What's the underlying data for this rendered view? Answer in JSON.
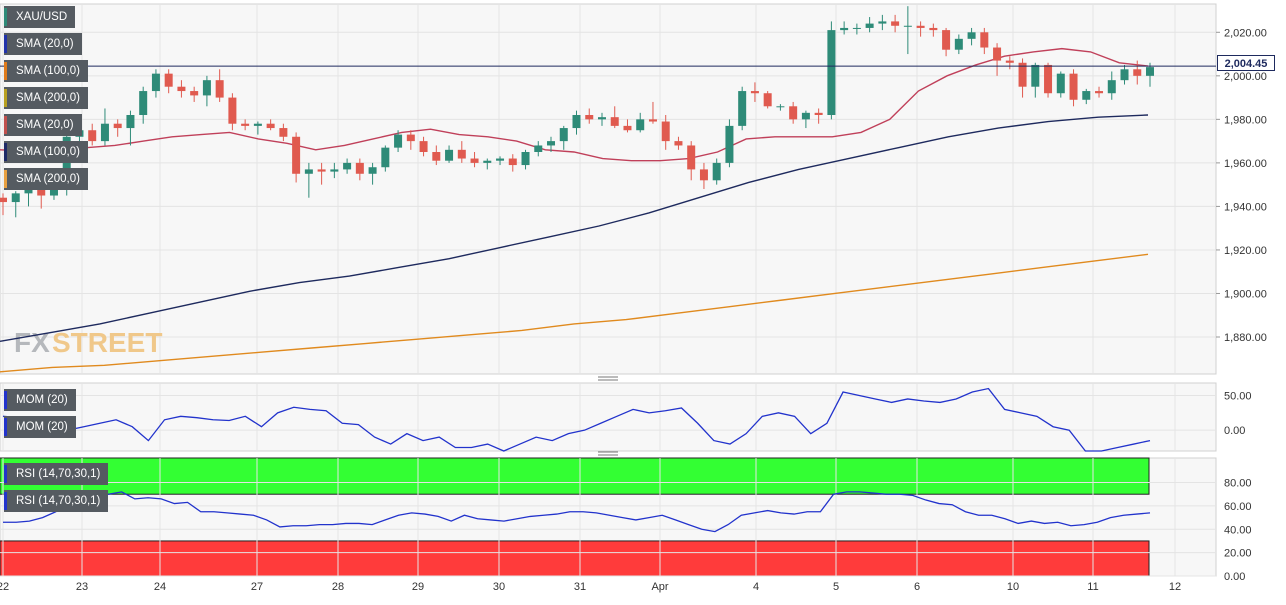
{
  "chart_data": {
    "type": "candlestick",
    "symbol": "XAU/USD",
    "watermark": "FXSTREET",
    "current_price": "2,004.45",
    "x_ticks": [
      "22",
      "23",
      "24",
      "27",
      "28",
      "29",
      "30",
      "31",
      "Apr",
      "4",
      "5",
      "6",
      "10",
      "11",
      "12"
    ],
    "y_ticks": [
      "2,020.00",
      "2,000.00",
      "1,980.00",
      "1,960.00",
      "1,940.00",
      "1,920.00",
      "1,900.00",
      "1,880.00"
    ],
    "ylim": [
      1863,
      2033
    ],
    "legend": [
      {
        "label": "XAU/USD",
        "color": "#2e8b78"
      },
      {
        "label": "SMA (20,0)",
        "color": "#2233aa"
      },
      {
        "label": "SMA (100,0)",
        "color": "#e07b1a"
      },
      {
        "label": "SMA (200,0)",
        "color": "#b8a020"
      },
      {
        "label": "SMA (20,0)",
        "color": "#c0504d"
      },
      {
        "label": "SMA (100,0)",
        "color": "#1e2a66"
      },
      {
        "label": "SMA (200,0)",
        "color": "#e8a040"
      }
    ],
    "colors": {
      "up": "#2e8b78",
      "down": "#e05a4f",
      "sma20": "#c0405a",
      "sma100": "#1e2a5e",
      "sma200": "#e08a1e",
      "price_line": "#1e2a5e"
    },
    "candles": [
      {
        "o": 1944,
        "h": 1946,
        "l": 1936,
        "c": 1942
      },
      {
        "o": 1942,
        "h": 1947,
        "l": 1935,
        "c": 1946
      },
      {
        "o": 1946,
        "h": 1952,
        "l": 1940,
        "c": 1949
      },
      {
        "o": 1949,
        "h": 1950,
        "l": 1939,
        "c": 1945
      },
      {
        "o": 1945,
        "h": 1955,
        "l": 1943,
        "c": 1953
      },
      {
        "o": 1953,
        "h": 1975,
        "l": 1945,
        "c": 1972
      },
      {
        "o": 1972,
        "h": 1978,
        "l": 1965,
        "c": 1975
      },
      {
        "o": 1975,
        "h": 1978,
        "l": 1968,
        "c": 1970
      },
      {
        "o": 1970,
        "h": 1985,
        "l": 1968,
        "c": 1978
      },
      {
        "o": 1978,
        "h": 1980,
        "l": 1972,
        "c": 1976
      },
      {
        "o": 1976,
        "h": 1984,
        "l": 1968,
        "c": 1982
      },
      {
        "o": 1982,
        "h": 1995,
        "l": 1978,
        "c": 1993
      },
      {
        "o": 1993,
        "h": 2003,
        "l": 1990,
        "c": 2001
      },
      {
        "o": 2001,
        "h": 2003,
        "l": 1992,
        "c": 1995
      },
      {
        "o": 1995,
        "h": 1998,
        "l": 1990,
        "c": 1993
      },
      {
        "o": 1993,
        "h": 1995,
        "l": 1988,
        "c": 1991
      },
      {
        "o": 1991,
        "h": 2000,
        "l": 1986,
        "c": 1998
      },
      {
        "o": 1998,
        "h": 2003,
        "l": 1988,
        "c": 1990
      },
      {
        "o": 1990,
        "h": 1992,
        "l": 1975,
        "c": 1978
      },
      {
        "o": 1978,
        "h": 1980,
        "l": 1975,
        "c": 1977
      },
      {
        "o": 1977,
        "h": 1979,
        "l": 1973,
        "c": 1978
      },
      {
        "o": 1978,
        "h": 1980,
        "l": 1975,
        "c": 1976
      },
      {
        "o": 1976,
        "h": 1978,
        "l": 1970,
        "c": 1972
      },
      {
        "o": 1972,
        "h": 1974,
        "l": 1951,
        "c": 1955
      },
      {
        "o": 1955,
        "h": 1960,
        "l": 1944,
        "c": 1957
      },
      {
        "o": 1957,
        "h": 1960,
        "l": 1950,
        "c": 1956
      },
      {
        "o": 1956,
        "h": 1960,
        "l": 1953,
        "c": 1957
      },
      {
        "o": 1957,
        "h": 1962,
        "l": 1955,
        "c": 1960
      },
      {
        "o": 1960,
        "h": 1962,
        "l": 1952,
        "c": 1955
      },
      {
        "o": 1955,
        "h": 1960,
        "l": 1950,
        "c": 1958
      },
      {
        "o": 1958,
        "h": 1968,
        "l": 1956,
        "c": 1967
      },
      {
        "o": 1967,
        "h": 1975,
        "l": 1965,
        "c": 1973
      },
      {
        "o": 1973,
        "h": 1975,
        "l": 1966,
        "c": 1970
      },
      {
        "o": 1970,
        "h": 1972,
        "l": 1963,
        "c": 1965
      },
      {
        "o": 1965,
        "h": 1968,
        "l": 1959,
        "c": 1961
      },
      {
        "o": 1961,
        "h": 1968,
        "l": 1960,
        "c": 1966
      },
      {
        "o": 1966,
        "h": 1970,
        "l": 1960,
        "c": 1962
      },
      {
        "o": 1962,
        "h": 1965,
        "l": 1958,
        "c": 1960
      },
      {
        "o": 1960,
        "h": 1962,
        "l": 1957,
        "c": 1961
      },
      {
        "o": 1961,
        "h": 1963,
        "l": 1959,
        "c": 1962
      },
      {
        "o": 1962,
        "h": 1964,
        "l": 1956,
        "c": 1959
      },
      {
        "o": 1959,
        "h": 1966,
        "l": 1957,
        "c": 1965
      },
      {
        "o": 1965,
        "h": 1970,
        "l": 1963,
        "c": 1968
      },
      {
        "o": 1968,
        "h": 1972,
        "l": 1965,
        "c": 1970
      },
      {
        "o": 1970,
        "h": 1977,
        "l": 1966,
        "c": 1976
      },
      {
        "o": 1976,
        "h": 1984,
        "l": 1973,
        "c": 1982
      },
      {
        "o": 1982,
        "h": 1985,
        "l": 1978,
        "c": 1980
      },
      {
        "o": 1980,
        "h": 1983,
        "l": 1977,
        "c": 1981
      },
      {
        "o": 1981,
        "h": 1986,
        "l": 1976,
        "c": 1977
      },
      {
        "o": 1977,
        "h": 1980,
        "l": 1974,
        "c": 1975
      },
      {
        "o": 1975,
        "h": 1983,
        "l": 1974,
        "c": 1980
      },
      {
        "o": 1980,
        "h": 1988,
        "l": 1978,
        "c": 1979
      },
      {
        "o": 1979,
        "h": 1982,
        "l": 1966,
        "c": 1970
      },
      {
        "o": 1970,
        "h": 1972,
        "l": 1966,
        "c": 1968
      },
      {
        "o": 1968,
        "h": 1970,
        "l": 1952,
        "c": 1957
      },
      {
        "o": 1957,
        "h": 1960,
        "l": 1948,
        "c": 1952
      },
      {
        "o": 1952,
        "h": 1962,
        "l": 1950,
        "c": 1960
      },
      {
        "o": 1960,
        "h": 1980,
        "l": 1958,
        "c": 1977
      },
      {
        "o": 1977,
        "h": 1995,
        "l": 1975,
        "c": 1993
      },
      {
        "o": 1993,
        "h": 1997,
        "l": 1988,
        "c": 1992
      },
      {
        "o": 1992,
        "h": 1993,
        "l": 1985,
        "c": 1986
      },
      {
        "o": 1986,
        "h": 1987,
        "l": 1984,
        "c": 1986
      },
      {
        "o": 1986,
        "h": 1988,
        "l": 1978,
        "c": 1980
      },
      {
        "o": 1980,
        "h": 1984,
        "l": 1976,
        "c": 1983
      },
      {
        "o": 1983,
        "h": 1985,
        "l": 1978,
        "c": 1982
      },
      {
        "o": 1982,
        "h": 2025,
        "l": 1980,
        "c": 2021
      },
      {
        "o": 2021,
        "h": 2025,
        "l": 2019,
        "c": 2022
      },
      {
        "o": 2022,
        "h": 2024,
        "l": 2019,
        "c": 2022
      },
      {
        "o": 2022,
        "h": 2027,
        "l": 2020,
        "c": 2024
      },
      {
        "o": 2024,
        "h": 2028,
        "l": 2021,
        "c": 2025
      },
      {
        "o": 2025,
        "h": 2028,
        "l": 2020,
        "c": 2023
      },
      {
        "o": 2023,
        "h": 2032,
        "l": 2010,
        "c": 2023
      },
      {
        "o": 2023,
        "h": 2025,
        "l": 2018,
        "c": 2022
      },
      {
        "o": 2022,
        "h": 2024,
        "l": 2018,
        "c": 2021
      },
      {
        "o": 2021,
        "h": 2022,
        "l": 2009,
        "c": 2012
      },
      {
        "o": 2012,
        "h": 2019,
        "l": 2010,
        "c": 2017
      },
      {
        "o": 2017,
        "h": 2022,
        "l": 2014,
        "c": 2020
      },
      {
        "o": 2020,
        "h": 2022,
        "l": 2010,
        "c": 2013
      },
      {
        "o": 2013,
        "h": 2015,
        "l": 2000,
        "c": 2007
      },
      {
        "o": 2007,
        "h": 2009,
        "l": 2003,
        "c": 2006
      },
      {
        "o": 2006,
        "h": 2008,
        "l": 1990,
        "c": 1995
      },
      {
        "o": 1995,
        "h": 2006,
        "l": 1990,
        "c": 2005
      },
      {
        "o": 2005,
        "h": 2006,
        "l": 1990,
        "c": 1992
      },
      {
        "o": 1992,
        "h": 2002,
        "l": 1990,
        "c": 2001
      },
      {
        "o": 2001,
        "h": 2003,
        "l": 1986,
        "c": 1989
      },
      {
        "o": 1989,
        "h": 1994,
        "l": 1987,
        "c": 1993
      },
      {
        "o": 1993,
        "h": 1995,
        "l": 1990,
        "c": 1992
      },
      {
        "o": 1992,
        "h": 2002,
        "l": 1989,
        "c": 1998
      },
      {
        "o": 1998,
        "h": 2005,
        "l": 1996,
        "c": 2003
      },
      {
        "o": 2003,
        "h": 2007,
        "l": 1996,
        "c": 2000
      },
      {
        "o": 2000,
        "h": 2006,
        "l": 1995,
        "c": 2004
      }
    ],
    "sma20": [
      1966,
      1965.5,
      1966,
      1967,
      1968,
      1970,
      1972,
      1973,
      1974,
      1971,
      1969,
      1966,
      1968,
      1971,
      1974,
      1975.5,
      1973,
      1972,
      1970,
      1966,
      1965,
      1962,
      1961,
      1961,
      1962,
      1965,
      1971,
      1972,
      1972,
      1972,
      1974,
      1980,
      1993,
      2000,
      2005,
      2009,
      2011,
      2012.5,
      2011,
      2006,
      2004.5
    ],
    "sma100": [
      1878,
      1882,
      1886,
      1891,
      1896,
      1901,
      1905,
      1908,
      1912,
      1916,
      1921,
      1926,
      1931,
      1937,
      1944,
      1951,
      1957,
      1962,
      1967,
      1972,
      1976,
      1979,
      1981,
      1982
    ],
    "sma200": [
      1864,
      1866,
      1867,
      1869,
      1871,
      1873,
      1875,
      1877,
      1879,
      1881,
      1883,
      1886,
      1888,
      1891,
      1894,
      1897,
      1900,
      1903,
      1906,
      1909,
      1912,
      1915,
      1918
    ],
    "mom": {
      "label": "MOM (20)",
      "legend": [
        "MOM (20)",
        "MOM (20)"
      ],
      "y_ticks": [
        "50.00",
        "0.00"
      ],
      "ylim": [
        -30,
        68
      ],
      "values": [
        20,
        18,
        15,
        10,
        0,
        5,
        10,
        15,
        5,
        -15,
        15,
        20,
        18,
        15,
        14,
        20,
        5,
        25,
        33,
        30,
        28,
        10,
        8,
        -10,
        -20,
        -5,
        -15,
        -10,
        -25,
        -25,
        -20,
        -30,
        -20,
        -10,
        -15,
        -5,
        0,
        10,
        20,
        30,
        25,
        28,
        32,
        10,
        -15,
        -20,
        -5,
        20,
        25,
        20,
        -5,
        10,
        55,
        50,
        45,
        40,
        45,
        42,
        40,
        45,
        55,
        60,
        30,
        25,
        20,
        5,
        0,
        -30,
        -30,
        -25,
        -20,
        -15
      ]
    },
    "rsi": {
      "label": "RSI (14,70,30,1)",
      "legend": [
        "RSI (14,70,30,1)",
        "RSI (14,70,30,1)"
      ],
      "y_ticks": [
        "80.00",
        "60.00",
        "40.00",
        "20.00",
        "0.00"
      ],
      "ylim": [
        0,
        101
      ],
      "overbought": 70,
      "oversold": 30,
      "values": [
        46,
        46,
        47,
        50,
        55,
        62,
        66,
        65,
        70,
        72,
        66,
        67,
        66,
        62,
        63,
        55,
        55,
        54,
        53,
        52,
        48,
        42,
        43,
        43,
        44,
        44,
        45,
        45,
        44,
        48,
        52,
        54,
        53,
        51,
        47,
        52,
        49,
        48,
        47,
        49,
        51,
        52,
        53,
        55,
        55,
        54,
        52,
        50,
        48,
        50,
        52,
        48,
        44,
        40,
        38,
        44,
        52,
        54,
        56,
        54,
        53,
        55,
        55,
        70,
        72,
        72,
        71,
        70,
        70,
        69,
        65,
        62,
        61,
        55,
        52,
        52,
        49,
        45,
        47,
        45,
        46,
        43,
        44,
        46,
        50,
        52,
        53,
        54
      ]
    }
  }
}
